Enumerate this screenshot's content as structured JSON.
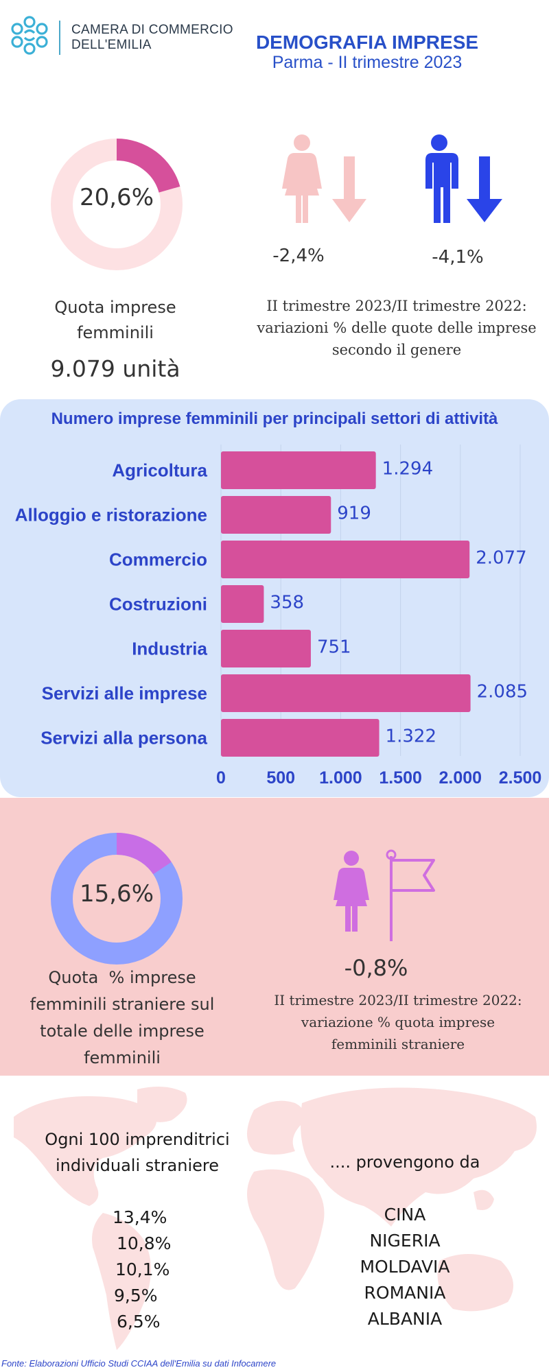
{
  "header": {
    "org_line1": "CAMERA DI COMMERCIO",
    "org_line2": "DELL'EMILIA",
    "title": "DEMOGRAFIA IMPRESE",
    "subtitle": "Parma - II trimestre 2023"
  },
  "female_share": {
    "percent_text": "20,6%",
    "percent_value": 20.6,
    "label_line1": "Quota imprese",
    "label_line2": "femminili",
    "units_text": "9.079 unità",
    "colors": {
      "filled": "#d6509b",
      "track": "#fde1e3"
    }
  },
  "gender_variation": {
    "women_text": "-2,4%",
    "men_text": "-4,1%",
    "label_line1": "II trimestre 2023/II trimestre 2022:",
    "label_line2": "variazioni % delle quote delle imprese",
    "label_line3": "secondo il genere",
    "colors": {
      "women": "#f7c5c5",
      "men": "#2a44e8"
    },
    "icons": [
      "woman-icon",
      "down-arrow-icon",
      "man-icon",
      "down-arrow-icon"
    ]
  },
  "chart_data": {
    "type": "bar",
    "orientation": "horizontal",
    "title": "Numero imprese femminili per principali settori di attività",
    "categories": [
      "Agricoltura",
      "Alloggio e ristorazione",
      "Commercio",
      "Costruzioni",
      "Industria",
      "Servizi alle imprese",
      "Servizi alla persona"
    ],
    "values": [
      1294,
      919,
      2077,
      358,
      751,
      2085,
      1322
    ],
    "data_labels": [
      "1.294",
      "919",
      "2.077",
      "358",
      "751",
      "2.085",
      "1.322"
    ],
    "xlim": [
      0,
      2500
    ],
    "x_ticks": [
      0,
      500,
      1000,
      1500,
      2000,
      2500
    ],
    "x_tick_labels": [
      "0",
      "500",
      "1.000",
      "1.500",
      "2.000",
      "2.500"
    ],
    "grid": true,
    "colors": {
      "bar": "#d6509b",
      "text": "#2c44c8",
      "background": "#d7e5fb"
    }
  },
  "foreign_share": {
    "percent_text": "15,6%",
    "percent_value": 15.6,
    "label_line1": "Quota  % imprese",
    "label_line2": "femminili straniere sul",
    "label_line3": "totale delle imprese",
    "label_line4": "femminili",
    "colors": {
      "filled": "#c86ee6",
      "track": "#8ea0ff",
      "background": "#f8cdcd"
    }
  },
  "foreign_variation": {
    "percent_text": "-0,8%",
    "label_line1": "II trimestre 2023/II trimestre 2022:",
    "label_line2": "variazione % quota imprese",
    "label_line3": "femminili straniere",
    "colors": {
      "icon": "#cf6ee0"
    },
    "icons": [
      "woman-icon",
      "flag-icon"
    ]
  },
  "origins": {
    "intro_line1": "Ogni 100 imprenditrici",
    "intro_line2": "individuali straniere",
    "from_text": ".... provengono da",
    "percents": [
      "13,4%",
      "10,8%",
      "10,1%",
      "9,5%",
      "6,5%"
    ],
    "countries": [
      "CINA",
      "NIGERIA",
      "MOLDAVIA",
      "ROMANIA",
      "ALBANIA"
    ],
    "colors": {
      "map": "#fbe0e0"
    }
  },
  "footer": {
    "source": "Fonte: Elaborazioni Ufficio Studi CCIAA dell'Emilia su dati Infocamere"
  }
}
